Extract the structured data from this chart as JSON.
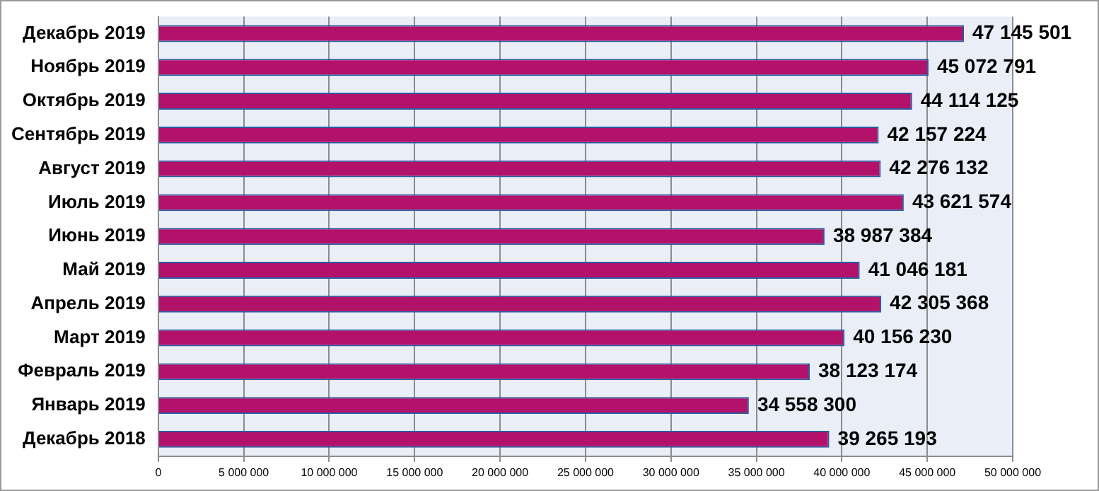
{
  "chart_data": {
    "type": "bar",
    "orientation": "horizontal",
    "categories": [
      "Декабрь 2019",
      "Ноябрь 2019",
      "Октябрь 2019",
      "Сентябрь 2019",
      "Август 2019",
      "Июль 2019",
      "Июнь 2019",
      "Май 2019",
      "Апрель 2019",
      "Март 2019",
      "Февраль 2019",
      "Январь 2019",
      "Декабрь 2018"
    ],
    "values": [
      47145501,
      45072791,
      44114125,
      42157224,
      42276132,
      43621574,
      38987384,
      41046181,
      42305368,
      40156230,
      38123174,
      34558300,
      39265193
    ],
    "value_labels": [
      "47 145 501",
      "45 072 791",
      "44 114 125",
      "42 157 224",
      "42 276 132",
      "43 621 574",
      "38 987 384",
      "41 046 181",
      "42 305 368",
      "40 156 230",
      "38 123 174",
      "34 558 300",
      "39 265 193"
    ],
    "color": "#b3126a",
    "xlim": [
      0,
      50000000
    ],
    "xticks": [
      0,
      {
        "value": 5000000,
        "label": "5 000 000"
      },
      {
        "value": 10000000,
        "label": "10 000 000"
      },
      {
        "value": 15000000,
        "label": "15 000 000"
      },
      {
        "value": 20000000,
        "label": "20 000 000"
      },
      {
        "value": 25000000,
        "label": "25 000 000"
      },
      {
        "value": 30000000,
        "label": "30 000 000"
      },
      {
        "value": 35000000,
        "label": "35 000 000"
      },
      {
        "value": 40000000,
        "label": "40 000 000"
      },
      {
        "value": 45000000,
        "label": "45 000 000"
      },
      {
        "value": 50000000,
        "label": "50 000 000"
      }
    ],
    "grid": "x",
    "legend": false
  }
}
